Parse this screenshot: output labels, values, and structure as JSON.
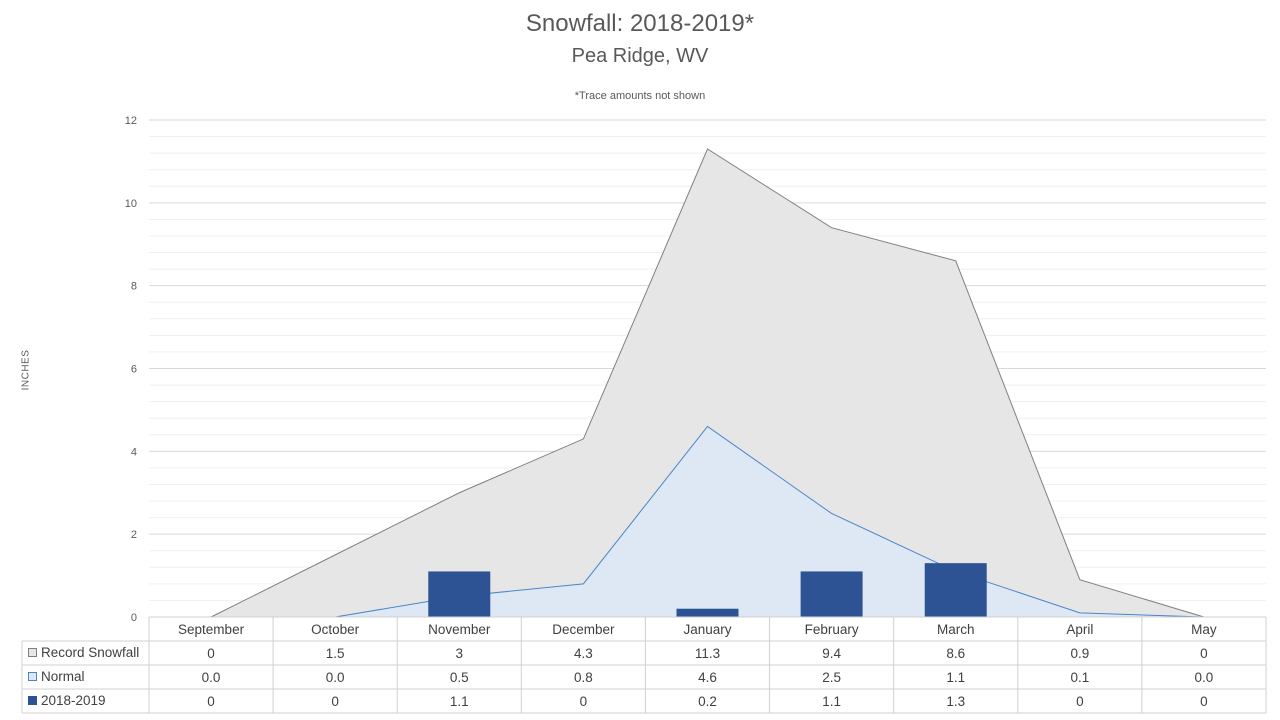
{
  "title": "Snowfall: 2018-2019*",
  "subtitle": "Pea Ridge, WV",
  "note": "*Trace amounts not shown",
  "colors": {
    "record_fill": "#e7e6e6",
    "record_line": "#808080",
    "normal_fill": "#dde8f4",
    "normal_line": "#4a86c8",
    "bar": "#2e5395",
    "grid_major": "#d9d9d9",
    "grid_minor": "#efefef",
    "table_border": "#d0d0d0"
  },
  "chart_data": {
    "type": "bar",
    "title": "Snowfall: 2018-2019*",
    "subtitle": "Pea Ridge, WV",
    "annotation": "*Trace amounts not shown",
    "ylabel": "INCHES",
    "ylim": [
      0,
      12
    ],
    "yticks": [
      "0",
      "2",
      "4",
      "6",
      "8",
      "10",
      "12"
    ],
    "grid": true,
    "legend": "data-table-left",
    "categories": [
      "September",
      "October",
      "November",
      "December",
      "January",
      "February",
      "March",
      "April",
      "May"
    ],
    "series": [
      {
        "name": "Record Snowfall",
        "type": "area",
        "values": [
          0,
          1.5,
          3,
          4.3,
          11.3,
          9.4,
          8.6,
          0.9,
          0
        ],
        "labels": [
          "0",
          "1.5",
          "3",
          "4.3",
          "11.3",
          "9.4",
          "8.6",
          "0.9",
          "0"
        ]
      },
      {
        "name": "Normal",
        "type": "area",
        "values": [
          0.0,
          0.0,
          0.5,
          0.8,
          4.6,
          2.5,
          1.1,
          0.1,
          0.0
        ],
        "labels": [
          "0.0",
          "0.0",
          "0.5",
          "0.8",
          "4.6",
          "2.5",
          "1.1",
          "0.1",
          "0.0"
        ]
      },
      {
        "name": "2018-2019",
        "type": "bar",
        "values": [
          0,
          0,
          1.1,
          0,
          0.2,
          1.1,
          1.3,
          0,
          0
        ],
        "labels": [
          "0",
          "0",
          "1.1",
          "0",
          "0.2",
          "1.1",
          "1.3",
          "0",
          "0"
        ]
      }
    ]
  }
}
